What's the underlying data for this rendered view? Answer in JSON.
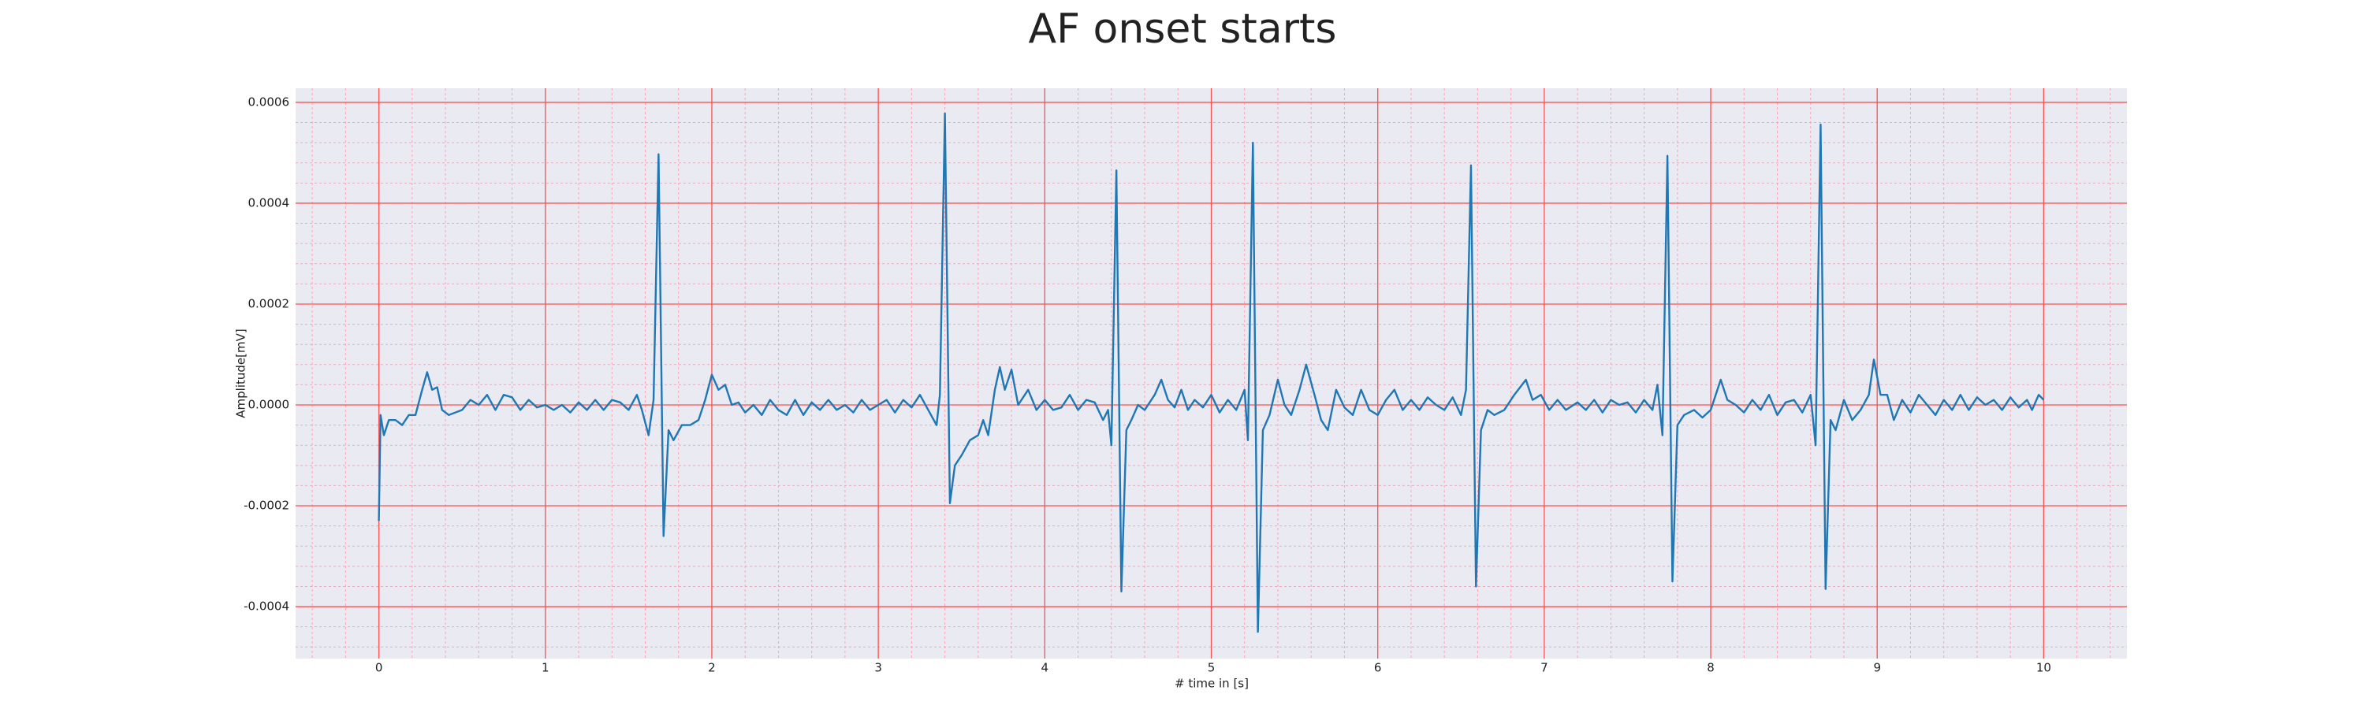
{
  "chart_data": {
    "type": "line",
    "title": "AF onset starts",
    "xlabel": "# time in [s]",
    "ylabel": "Amplitude[mV]",
    "color": "#1f77b4",
    "background": "#eaeaf2",
    "grid": true,
    "grid_color": "#ff5050",
    "minor_grid": true,
    "minor_grid_color": "#f4a7b9",
    "xlim": [
      -0.5,
      10.5
    ],
    "xticks": [
      0,
      1,
      2,
      3,
      4,
      5,
      6,
      7,
      8,
      9,
      10
    ],
    "ylim": [
      -0.000503,
      0.000628
    ],
    "yticks": [
      {
        "value": -0.0004,
        "label": "-0.0004"
      },
      {
        "value": -0.0002,
        "label": "-0.0002"
      },
      {
        "value": 0,
        "label": "0.0000"
      },
      {
        "value": 0.0002,
        "label": "0.0002"
      },
      {
        "value": 0.0004,
        "label": "0.0004"
      },
      {
        "value": 0.0006,
        "label": "0.0006"
      }
    ],
    "x": [
      0,
      0.01,
      0.03,
      0.06,
      0.1,
      0.14,
      0.18,
      0.22,
      0.26,
      0.29,
      0.32,
      0.35,
      0.38,
      0.42,
      0.5,
      0.55,
      0.6,
      0.65,
      0.7,
      0.75,
      0.8,
      0.85,
      0.9,
      0.95,
      1.0,
      1.05,
      1.1,
      1.15,
      1.2,
      1.25,
      1.3,
      1.35,
      1.4,
      1.45,
      1.5,
      1.55,
      1.58,
      1.62,
      1.65,
      1.68,
      1.71,
      1.74,
      1.77,
      1.82,
      1.87,
      1.92,
      1.96,
      2.0,
      2.04,
      2.08,
      2.12,
      2.16,
      2.2,
      2.25,
      2.3,
      2.35,
      2.4,
      2.45,
      2.5,
      2.55,
      2.6,
      2.65,
      2.7,
      2.75,
      2.8,
      2.85,
      2.9,
      2.95,
      3.0,
      3.05,
      3.1,
      3.15,
      3.2,
      3.25,
      3.3,
      3.35,
      3.37,
      3.4,
      3.43,
      3.46,
      3.5,
      3.55,
      3.6,
      3.63,
      3.66,
      3.7,
      3.73,
      3.76,
      3.8,
      3.84,
      3.9,
      3.95,
      4.0,
      4.05,
      4.1,
      4.15,
      4.2,
      4.25,
      4.3,
      4.35,
      4.38,
      4.4,
      4.43,
      4.46,
      4.49,
      4.52,
      4.56,
      4.6,
      4.66,
      4.7,
      4.74,
      4.78,
      4.82,
      4.86,
      4.9,
      4.95,
      5.0,
      5.05,
      5.1,
      5.15,
      5.2,
      5.22,
      5.25,
      5.28,
      5.31,
      5.35,
      5.4,
      5.44,
      5.48,
      5.53,
      5.57,
      5.62,
      5.66,
      5.7,
      5.75,
      5.8,
      5.85,
      5.9,
      5.95,
      6.0,
      6.05,
      6.1,
      6.15,
      6.2,
      6.25,
      6.3,
      6.35,
      6.4,
      6.45,
      6.5,
      6.53,
      6.56,
      6.59,
      6.62,
      6.66,
      6.7,
      6.76,
      6.82,
      6.89,
      6.93,
      6.98,
      7.03,
      7.08,
      7.13,
      7.2,
      7.25,
      7.3,
      7.35,
      7.4,
      7.45,
      7.5,
      7.55,
      7.6,
      7.65,
      7.68,
      7.71,
      7.74,
      7.77,
      7.8,
      7.84,
      7.9,
      7.95,
      8.0,
      8.03,
      8.06,
      8.1,
      8.15,
      8.2,
      8.25,
      8.3,
      8.35,
      8.4,
      8.45,
      8.5,
      8.55,
      8.6,
      8.63,
      8.66,
      8.69,
      8.72,
      8.75,
      8.8,
      8.85,
      8.9,
      8.95,
      8.98,
      9.02,
      9.06,
      9.1,
      9.15,
      9.2,
      9.25,
      9.3,
      9.35,
      9.4,
      9.45,
      9.5,
      9.55,
      9.6,
      9.65,
      9.7,
      9.75,
      9.8,
      9.85,
      9.9,
      9.93,
      9.97,
      10.0
    ],
    "values": [
      -0.00023,
      -2e-05,
      -6e-05,
      -3e-05,
      -3e-05,
      -4e-05,
      -2e-05,
      -2e-05,
      3e-05,
      6.5e-05,
      3e-05,
      3.5e-05,
      -1e-05,
      -2e-05,
      -1e-05,
      1e-05,
      0,
      2e-05,
      -1e-05,
      2e-05,
      1.5e-05,
      -1e-05,
      1e-05,
      -5e-06,
      0,
      -1e-05,
      0,
      -1.5e-05,
      5e-06,
      -1e-05,
      1e-05,
      -1e-05,
      1e-05,
      5e-06,
      -1e-05,
      2e-05,
      -1e-05,
      -6e-05,
      1e-05,
      0.000497,
      -0.00026,
      -5e-05,
      -7e-05,
      -4e-05,
      -4e-05,
      -3e-05,
      1e-05,
      6e-05,
      3e-05,
      4e-05,
      0,
      5e-06,
      -1.5e-05,
      0,
      -2e-05,
      1e-05,
      -1e-05,
      -2e-05,
      1e-05,
      -2e-05,
      5e-06,
      -1e-05,
      1e-05,
      -1e-05,
      0,
      -1.5e-05,
      1e-05,
      -1e-05,
      0,
      1e-05,
      -1.5e-05,
      1e-05,
      -5e-06,
      2e-05,
      -1e-05,
      -4e-05,
      2e-05,
      0.000578,
      -0.000195,
      -0.00012,
      -0.0001,
      -7e-05,
      -6e-05,
      -3e-05,
      -6e-05,
      3e-05,
      7.5e-05,
      3e-05,
      7e-05,
      0,
      3e-05,
      -1e-05,
      1e-05,
      -1e-05,
      -5e-06,
      2e-05,
      -1e-05,
      1e-05,
      5e-06,
      -3e-05,
      -1e-05,
      -8e-05,
      0.000465,
      -0.00037,
      -5e-05,
      -3e-05,
      0,
      -1e-05,
      2e-05,
      5e-05,
      1e-05,
      -5e-06,
      3e-05,
      -1e-05,
      1e-05,
      -5e-06,
      2e-05,
      -1.5e-05,
      1e-05,
      -1e-05,
      3e-05,
      -7e-05,
      0.00052,
      -0.00045,
      -5e-05,
      -2e-05,
      5e-05,
      0,
      -2e-05,
      3e-05,
      8e-05,
      2e-05,
      -3e-05,
      -5e-05,
      3e-05,
      -5e-06,
      -2e-05,
      3e-05,
      -1e-05,
      -2e-05,
      1e-05,
      3e-05,
      -1e-05,
      1e-05,
      -1e-05,
      1.5e-05,
      0,
      -1e-05,
      1.5e-05,
      -2e-05,
      3e-05,
      0.000475,
      -0.00036,
      -5e-05,
      -1e-05,
      -2e-05,
      -1e-05,
      2e-05,
      5e-05,
      1e-05,
      2e-05,
      -1e-05,
      1e-05,
      -1e-05,
      5e-06,
      -1e-05,
      1e-05,
      -1.5e-05,
      1e-05,
      0,
      5e-06,
      -1.5e-05,
      1e-05,
      -1e-05,
      4e-05,
      -6e-05,
      0.000494,
      -0.00035,
      -4e-05,
      -2e-05,
      -1e-05,
      -2.5e-05,
      -1e-05,
      2e-05,
      5e-05,
      1e-05,
      0,
      -1.5e-05,
      1e-05,
      -1e-05,
      2e-05,
      -2e-05,
      5e-06,
      1e-05,
      -1.5e-05,
      2e-05,
      -8e-05,
      0.000556,
      -0.000365,
      -3e-05,
      -5e-05,
      1e-05,
      -3e-05,
      -1e-05,
      2e-05,
      9e-05,
      2e-05,
      2e-05,
      -3e-05,
      1e-05,
      -1.5e-05,
      2e-05,
      0,
      -2e-05,
      1e-05,
      -1e-05,
      2e-05,
      -1e-05,
      1.5e-05,
      0,
      1e-05,
      -1e-05,
      1.5e-05,
      -5e-06,
      1e-05,
      -1e-05,
      2e-05,
      1e-05
    ]
  }
}
